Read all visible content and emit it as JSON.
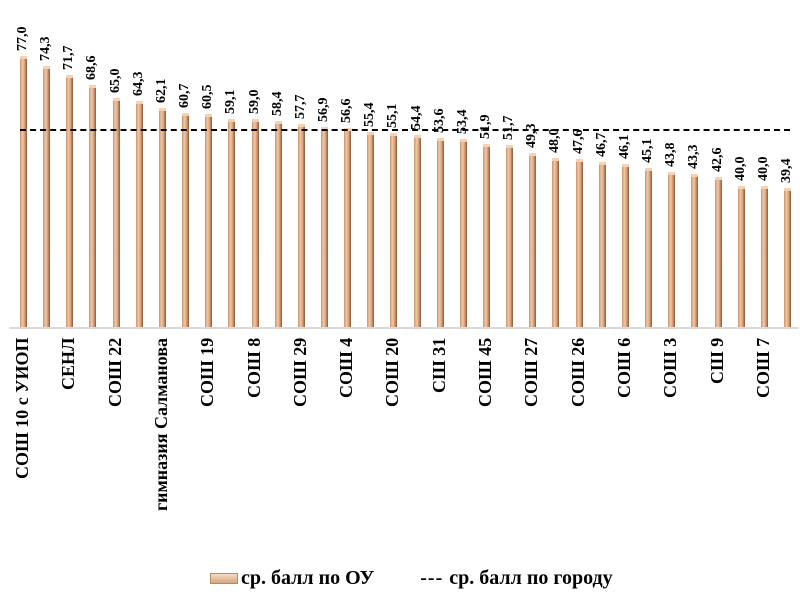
{
  "chart_data": {
    "type": "bar",
    "title": "",
    "xlabel": "",
    "ylabel": "",
    "ylim": [
      0,
      77
    ],
    "grid": false,
    "legend_position": "bottom",
    "categories": [
      "СОШ 10 с УИОП",
      "",
      "СЕНЛ",
      "",
      "СОШ 22",
      "",
      "гимназия Салманова",
      "",
      "СОШ 19",
      "",
      "СОШ 8",
      "",
      "СОШ 29",
      "",
      "СОШ 4",
      "",
      "СОШ 20",
      "",
      "СШ 31",
      "",
      "СОШ 45",
      "",
      "СОШ 27",
      "",
      "СОШ 26",
      "",
      "СОШ 6",
      "",
      "СОШ 3",
      "",
      "СШ 9",
      "",
      "СОШ 7",
      ""
    ],
    "visible_tick_labels": [
      "СОШ 10 с УИОП",
      "СЕНЛ",
      "СОШ 22",
      "гимназия Салманова",
      "СОШ 19",
      "СОШ 8",
      "СОШ 29",
      "СОШ 4",
      "СОШ 20",
      "СШ 31",
      "СОШ 45",
      "СОШ 27",
      "СОШ 26",
      "СОШ 6",
      "СОШ 3",
      "СШ 9",
      "СОШ 7"
    ],
    "series": [
      {
        "name": "ср. балл по ОУ",
        "type": "bar",
        "color": "#e2ab84",
        "values": [
          77.0,
          74.3,
          71.7,
          68.6,
          65.0,
          64.3,
          62.1,
          60.7,
          60.5,
          59.1,
          59.0,
          58.4,
          57.7,
          56.9,
          56.6,
          55.4,
          55.1,
          54.4,
          53.6,
          53.4,
          51.9,
          51.7,
          49.3,
          48.0,
          47.6,
          46.7,
          46.1,
          45.1,
          43.8,
          43.3,
          42.6,
          40.0,
          40.0,
          39.4
        ],
        "data_labels": [
          "77,0",
          "74,3",
          "71,7",
          "68,6",
          "65,0",
          "64,3",
          "62,1",
          "60,7",
          "60,5",
          "59,1",
          "59,0",
          "58,4",
          "57,7",
          "56,9",
          "56,6",
          "55,4",
          "55,1",
          "54,4",
          "53,6",
          "53,4",
          "51,9",
          "51,7",
          "49,3",
          "48,0",
          "47,6",
          "46,7",
          "46,1",
          "45,1",
          "43,8",
          "43,3",
          "42,6",
          "40,0",
          "40,0",
          "39,4"
        ]
      },
      {
        "name": "ср. балл по городу",
        "type": "line",
        "style": "dashed",
        "color": "#000000",
        "value": 56.2
      }
    ]
  },
  "legend": {
    "bar_label": "ср. балл по ОУ",
    "line_symbol": "---",
    "line_label": "ср. балл по городу"
  }
}
